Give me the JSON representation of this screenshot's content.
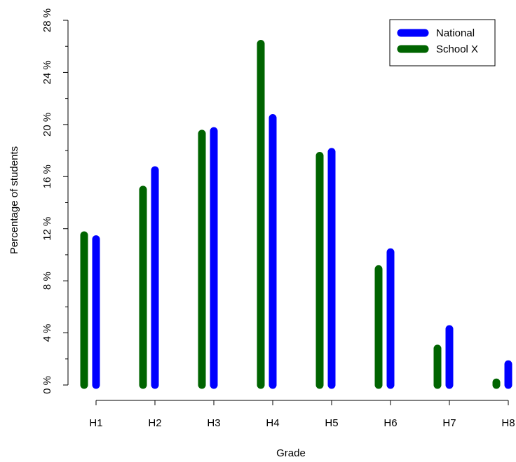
{
  "chart_data": {
    "type": "bar",
    "xlabel": "Grade",
    "ylabel": "Percentage of students",
    "ylim": [
      0,
      28
    ],
    "yticks": [
      0,
      4,
      8,
      12,
      16,
      20,
      24,
      28
    ],
    "ytick_labels": [
      "0 %",
      "4 %",
      "8 %",
      "12 %",
      "16 %",
      "20 %",
      "24 %",
      "28 %"
    ],
    "categories": [
      "H1",
      "H2",
      "H3",
      "H4",
      "H5",
      "H6",
      "H7",
      "H8"
    ],
    "series": [
      {
        "name": "School X",
        "color": "#006400",
        "values": [
          11.5,
          15.0,
          19.3,
          26.2,
          17.6,
          8.9,
          2.8,
          0.2
        ]
      },
      {
        "name": "National",
        "color": "#0000ff",
        "values": [
          11.2,
          16.5,
          19.5,
          20.5,
          17.9,
          10.2,
          4.3,
          1.6
        ]
      }
    ],
    "legend_position": "top-right",
    "legend_order": [
      "National",
      "School X"
    ],
    "grid": false
  }
}
